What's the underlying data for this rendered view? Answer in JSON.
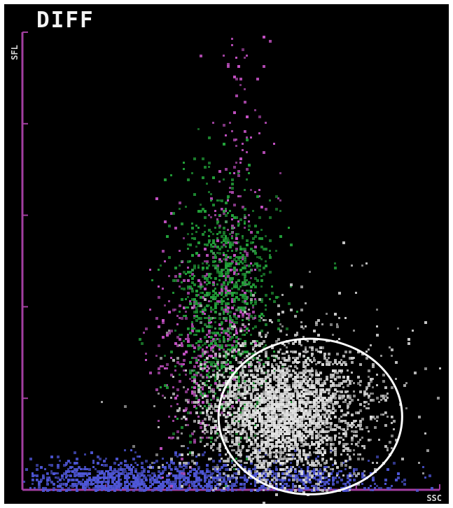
{
  "chart_data": {
    "type": "scatter",
    "title": "DIFF",
    "xlabel": "SSC",
    "ylabel": "SFL",
    "xlim": [
      0,
      100
    ],
    "ylim": [
      0,
      100
    ],
    "grid": false,
    "legend": "none",
    "axis_color": "#a23ea0",
    "series": [
      {
        "color": "#4f57d8",
        "values": [
          {
            "x": 18,
            "y": 1.5,
            "r": 10,
            "w": 9,
            "h": 2.5,
            "density": 0.95
          },
          {
            "x": 30,
            "y": 1.8,
            "r": 12,
            "w": 16,
            "h": 2.5,
            "density": 0.9
          },
          {
            "x": 52,
            "y": 2.2,
            "r": 10,
            "w": 16,
            "h": 2.2,
            "density": 0.8
          },
          {
            "x": 68,
            "y": 2.0,
            "r": 8,
            "w": 12,
            "h": 2.0,
            "density": 0.7
          }
        ]
      },
      {
        "color": "#c552c5",
        "values": [
          {
            "x": 41,
            "y": 31,
            "r": 8,
            "w": 5,
            "h": 12,
            "density": 0.95
          },
          {
            "x": 50,
            "y": 44,
            "r": 8,
            "w": 3,
            "h": 10,
            "density": 0.55
          },
          {
            "x": 52,
            "y": 72,
            "r": 6,
            "w": 4,
            "h": 9,
            "density": 0.35
          },
          {
            "x": 53,
            "y": 93,
            "r": 4,
            "w": 3,
            "h": 5,
            "density": 0.25
          }
        ]
      },
      {
        "color": "#23a33a",
        "values": [
          {
            "x": 48,
            "y": 39,
            "r": 13,
            "w": 6,
            "h": 14,
            "density": 0.95
          },
          {
            "x": 49,
            "y": 51,
            "r": 7,
            "w": 5,
            "h": 7,
            "density": 0.55
          },
          {
            "x": 57,
            "y": 43,
            "r": 4,
            "w": 8,
            "h": 10,
            "density": 0.22
          }
        ]
      },
      {
        "color": "#c8c8c8",
        "values": [
          {
            "x": 62,
            "y": 17,
            "r": 20,
            "w": 11,
            "h": 9,
            "density": 0.97
          },
          {
            "x": 73,
            "y": 18,
            "r": 7,
            "w": 10,
            "h": 12,
            "density": 0.38
          },
          {
            "x": 79,
            "y": 25,
            "r": 6,
            "w": 7,
            "h": 11,
            "density": 0.24
          },
          {
            "x": 45,
            "y": 13,
            "r": 5,
            "w": 7,
            "h": 7,
            "density": 0.18
          }
        ]
      }
    ],
    "annotations": [
      {
        "type": "ellipse",
        "cx": 69,
        "cy": 16,
        "rx": 22,
        "ry": 17
      }
    ]
  }
}
